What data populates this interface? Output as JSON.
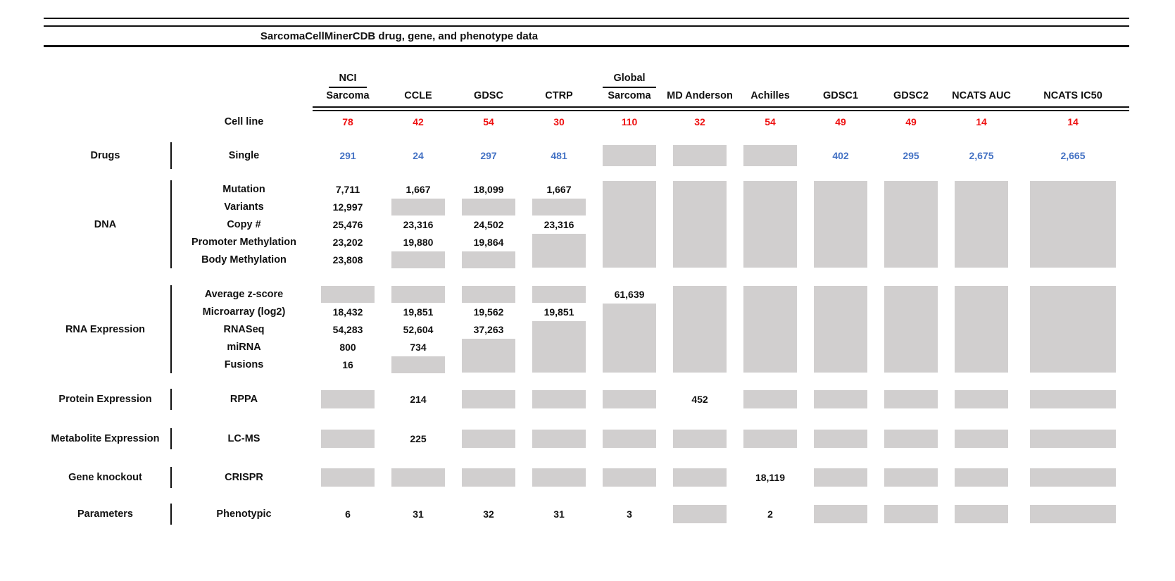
{
  "title": "SarcomaCellMinerCDB drug, gene, and phenotype data",
  "colors": {
    "count_red": "#EE1111",
    "drug_count_blue": "#4472C4",
    "missing_data_gray": "#D1CFCF"
  },
  "columns": [
    {
      "id": "nci-sarcoma",
      "label_top": "NCI",
      "label": "Sarcoma"
    },
    {
      "id": "ccle",
      "label": "CCLE"
    },
    {
      "id": "gdsc",
      "label": "GDSC"
    },
    {
      "id": "ctrp",
      "label": "CTRP"
    },
    {
      "id": "global-sarcoma",
      "label_top": "Global",
      "label": "Sarcoma"
    },
    {
      "id": "md-anderson",
      "label": "MD Anderson"
    },
    {
      "id": "achilles",
      "label": "Achilles"
    },
    {
      "id": "gdsc1",
      "label": "GDSC1"
    },
    {
      "id": "gdsc2",
      "label": "GDSC2"
    },
    {
      "id": "ncats-auc",
      "label": "NCATS AUC"
    },
    {
      "id": "ncats-ic50",
      "label": "NCATS IC50"
    }
  ],
  "cell_line_row": {
    "label": "Cell line",
    "values": [
      "78",
      "42",
      "54",
      "30",
      "110",
      "32",
      "54",
      "49",
      "49",
      "14",
      "14"
    ]
  },
  "sections": [
    {
      "id": "drugs",
      "name": "Drugs",
      "value_color": "blue",
      "rows": [
        {
          "label": "Single",
          "cells": [
            "291",
            "24",
            "297",
            "481",
            {
              "g": 1
            },
            {
              "g": 1
            },
            {
              "g": 1
            },
            "402",
            "295",
            "2,675",
            "2,665"
          ]
        }
      ]
    },
    {
      "id": "dna",
      "name": "DNA",
      "rows": [
        {
          "label": "Mutation",
          "cells": [
            "7,711",
            "1,667",
            "18,099",
            "1,667",
            {
              "g": 5
            },
            {
              "g": 5
            },
            {
              "g": 5
            },
            {
              "g": 5
            },
            {
              "g": 5
            },
            {
              "g": 5
            },
            {
              "g": 5
            }
          ]
        },
        {
          "label": "Variants",
          "cells": [
            "12,997",
            {
              "g": 1
            },
            {
              "g": 1
            },
            {
              "g": 1
            },
            null,
            null,
            null,
            null,
            null,
            null,
            null
          ]
        },
        {
          "label": "Copy #",
          "cells": [
            "25,476",
            "23,316",
            "24,502",
            "23,316",
            null,
            null,
            null,
            null,
            null,
            null,
            null
          ]
        },
        {
          "label": "Promoter Methylation",
          "cells": [
            "23,202",
            "19,880",
            "19,864",
            {
              "g": 2
            },
            null,
            null,
            null,
            null,
            null,
            null,
            null
          ]
        },
        {
          "label": "Body Methylation",
          "cells": [
            "23,808",
            {
              "g": 1
            },
            {
              "g": 1
            },
            null,
            null,
            null,
            null,
            null,
            null,
            null,
            null
          ]
        }
      ]
    },
    {
      "id": "rna",
      "name": "RNA Expression",
      "rows": [
        {
          "label": "Average z-score",
          "cells": [
            {
              "g": 1
            },
            {
              "g": 1
            },
            {
              "g": 1
            },
            {
              "g": 1
            },
            "61,639",
            {
              "g": 5
            },
            {
              "g": 5
            },
            {
              "g": 5
            },
            {
              "g": 5
            },
            {
              "g": 5
            },
            {
              "g": 5
            }
          ]
        },
        {
          "label": "Microarray (log2)",
          "cells": [
            "18,432",
            "19,851",
            "19,562",
            "19,851",
            {
              "g": 4
            },
            null,
            null,
            null,
            null,
            null,
            null
          ]
        },
        {
          "label": "RNASeq",
          "cells": [
            "54,283",
            "52,604",
            "37,263",
            {
              "g": 3
            },
            null,
            null,
            null,
            null,
            null,
            null,
            null
          ]
        },
        {
          "label": "miRNA",
          "cells": [
            "800",
            "734",
            {
              "g": 2
            },
            null,
            null,
            null,
            null,
            null,
            null,
            null,
            null
          ]
        },
        {
          "label": "Fusions",
          "cells": [
            "16",
            {
              "g": 1
            },
            null,
            null,
            null,
            null,
            null,
            null,
            null,
            null,
            null
          ]
        }
      ]
    },
    {
      "id": "protein",
      "name": "Protein Expression",
      "rows": [
        {
          "label": "RPPA",
          "cells": [
            {
              "g": 1
            },
            "214",
            {
              "g": 1
            },
            {
              "g": 1
            },
            {
              "g": 1
            },
            "452",
            {
              "g": 1
            },
            {
              "g": 1
            },
            {
              "g": 1
            },
            {
              "g": 1
            },
            {
              "g": 1
            }
          ]
        }
      ]
    },
    {
      "id": "metabolite",
      "name": "Metabolite Expression",
      "rows": [
        {
          "label": "LC-MS",
          "cells": [
            {
              "g": 1
            },
            "225",
            {
              "g": 1
            },
            {
              "g": 1
            },
            {
              "g": 1
            },
            {
              "g": 1
            },
            {
              "g": 1
            },
            {
              "g": 1
            },
            {
              "g": 1
            },
            {
              "g": 1
            },
            {
              "g": 1
            }
          ]
        }
      ]
    },
    {
      "id": "knockout",
      "name": "Gene knockout",
      "rows": [
        {
          "label": "CRISPR",
          "cells": [
            {
              "g": 1
            },
            {
              "g": 1
            },
            {
              "g": 1
            },
            {
              "g": 1
            },
            {
              "g": 1
            },
            {
              "g": 1
            },
            "18,119",
            {
              "g": 1
            },
            {
              "g": 1
            },
            {
              "g": 1
            },
            {
              "g": 1
            }
          ]
        }
      ]
    },
    {
      "id": "parameters",
      "name": "Parameters",
      "rows": [
        {
          "label": "Phenotypic",
          "cells": [
            "6",
            "31",
            "32",
            "31",
            "3",
            {
              "g": 1
            },
            "2",
            {
              "g": 1
            },
            {
              "g": 1
            },
            {
              "g": 1
            },
            {
              "g": 1
            }
          ]
        }
      ]
    }
  ]
}
